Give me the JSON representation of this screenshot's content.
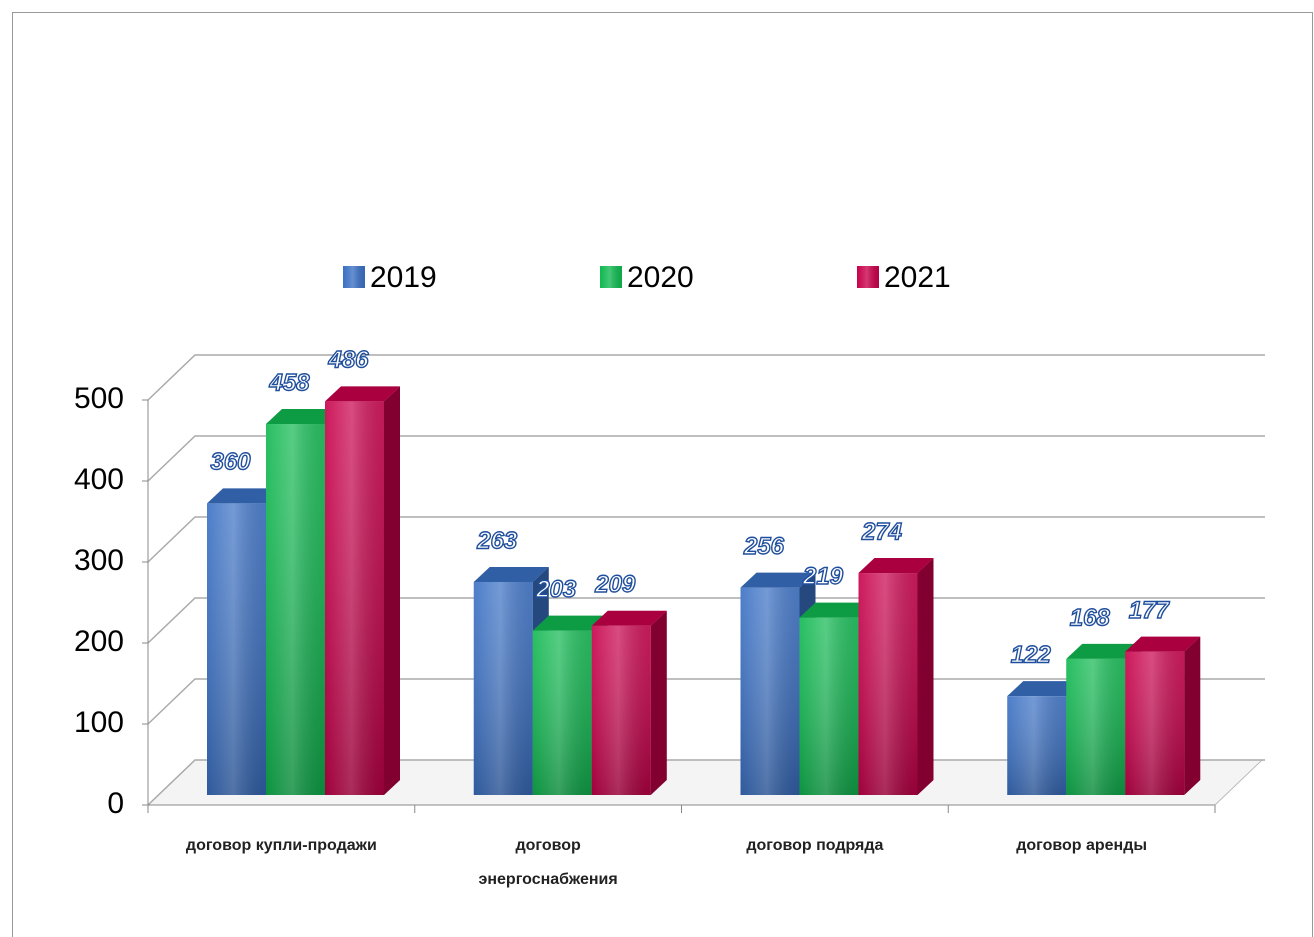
{
  "chart_data": {
    "type": "bar3d",
    "categories": [
      "договор купли-продажи",
      "договор энергоснабжения",
      "договор подряда",
      "договор аренды"
    ],
    "series": [
      {
        "name": "2019",
        "color": "#3a70c4",
        "values": [
          360,
          263,
          256,
          122
        ]
      },
      {
        "name": "2020",
        "color": "#10b850",
        "values": [
          458,
          203,
          219,
          168
        ]
      },
      {
        "name": "2021",
        "color": "#c8004a",
        "values": [
          486,
          209,
          274,
          177
        ]
      }
    ],
    "ylim": [
      0,
      500
    ],
    "yticks": [
      0,
      100,
      200,
      300,
      400,
      500
    ],
    "grid": true,
    "legend": "top"
  }
}
